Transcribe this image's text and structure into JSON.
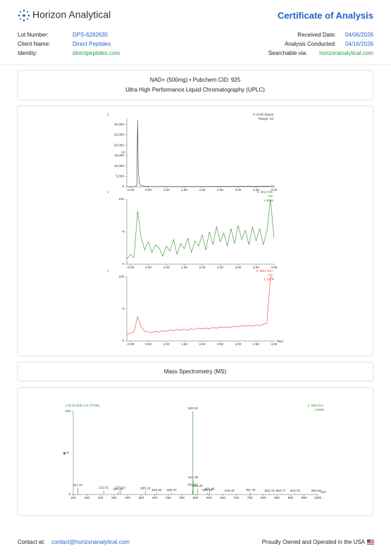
{
  "header": {
    "brand": "Horizon Analytical",
    "title": "Certificate of Analysis"
  },
  "details": {
    "left": [
      [
        "Lot Number:",
        "DPS-6282635"
      ],
      [
        "Client Name:",
        "Direct Peptides"
      ],
      [
        "Identity:",
        "directpeptides.com"
      ]
    ],
    "right": [
      [
        "Received Date:",
        "04/06/2026"
      ],
      [
        "Analysis Conducted:",
        "04/16/2026"
      ],
      [
        "Searchable via:",
        "horizonanalytical.com"
      ]
    ]
  },
  "uplc": {
    "line1": "NAD+ (500mg) • Pubchem CID: 925",
    "line2": "Ultra High Performance Liquid Chromatography (UPLC)"
  },
  "ms_section": {
    "title": "Mass Spectrometry (MS)"
  },
  "footer": {
    "contact_label": "Contact at:",
    "email": "contact@horizonanalytical.com",
    "tagline": "Proudly Owned and Operated in the USA"
  },
  "chart_data": [
    {
      "type": "line",
      "corner_label": "1",
      "trace_title": "2: DAD Signal",
      "trace_sub": "Range: 33",
      "ylabel": "AU",
      "color": "#333333",
      "x": [
        -0.1,
        0,
        0.1,
        0.15,
        0.18,
        0.2,
        0.22,
        0.25,
        0.3,
        0.4,
        0.5,
        1,
        1.5,
        2,
        2.5,
        3,
        3.5,
        3.8,
        3.9,
        4.0
      ],
      "values": [
        0,
        0,
        0,
        100,
        1000,
        32000,
        8000,
        1500,
        500,
        200,
        100,
        50,
        50,
        50,
        100,
        150,
        200,
        250,
        300,
        350
      ],
      "xlim": [
        -0.1,
        4.0
      ],
      "ylim": [
        0,
        33000
      ],
      "xticks": [
        {
          "value": 0,
          "label": "-0.00"
        },
        {
          "value": 0.5,
          "label": "0.50"
        },
        {
          "value": 1,
          "label": "1.00"
        },
        {
          "value": 1.5,
          "label": "1.50"
        },
        {
          "value": 2,
          "label": "2.00"
        },
        {
          "value": 2.5,
          "label": "2.50"
        },
        {
          "value": 3,
          "label": "3.00"
        },
        {
          "value": 3.5,
          "label": "3.50"
        },
        {
          "value": 4,
          "label": "4.00"
        }
      ],
      "yticks": [
        0,
        {
          "value": 5000,
          "label": "5,000"
        },
        {
          "value": 10000,
          "label": "10,000"
        },
        {
          "value": 15000,
          "label": "15,000"
        },
        {
          "value": 20000,
          "label": "20,000"
        },
        {
          "value": 25000,
          "label": "25,000"
        },
        {
          "value": 30000,
          "label": "30,000"
        }
      ]
    },
    {
      "type": "line",
      "corner_label": "1",
      "trace_title": "2: MS2 ES-",
      "trace_sub": "TIC",
      "scale": "1.36e5",
      "ylabel": "%",
      "color": "#2e8b2e",
      "x": [
        -0.1,
        0,
        0.1,
        0.2,
        0.3,
        0.4,
        0.5,
        0.6,
        0.7,
        0.8,
        0.9,
        1.0,
        1.1,
        1.2,
        1.3,
        1.4,
        1.5,
        1.6,
        1.7,
        1.8,
        1.9,
        2.0,
        2.1,
        2.2,
        2.3,
        2.4,
        2.5,
        2.6,
        2.7,
        2.8,
        2.9,
        3.0,
        3.1,
        3.2,
        3.3,
        3.4,
        3.5,
        3.6,
        3.7,
        3.8,
        3.9,
        4.0
      ],
      "values": [
        8,
        15,
        10,
        82,
        40,
        22,
        35,
        18,
        30,
        25,
        12,
        28,
        20,
        38,
        15,
        32,
        24,
        40,
        18,
        36,
        28,
        45,
        22,
        50,
        30,
        58,
        35,
        48,
        28,
        55,
        32,
        60,
        38,
        52,
        30,
        58,
        36,
        55,
        30,
        50,
        100,
        40
      ],
      "xlim": [
        -0.1,
        4.0
      ],
      "ylim": [
        0,
        100
      ],
      "xticks": [
        {
          "value": 0,
          "label": "-0.00"
        },
        {
          "value": 0.5,
          "label": "0.50"
        },
        {
          "value": 1,
          "label": "1.00"
        },
        {
          "value": 1.5,
          "label": "1.50"
        },
        {
          "value": 2,
          "label": "2.00"
        },
        {
          "value": 2.5,
          "label": "2.50"
        },
        {
          "value": 3,
          "label": "3.00"
        },
        {
          "value": 3.5,
          "label": "3.50"
        },
        {
          "value": 4,
          "label": "4.00"
        }
      ],
      "yticks": [
        0,
        100
      ]
    },
    {
      "type": "line",
      "corner_label": "1",
      "trace_title": "3: MS2 ES+",
      "trace_sub": "TIC",
      "scale": "1.11e7",
      "ylabel": "%",
      "xlabel": "Time",
      "color": "#e83a3a",
      "x": [
        -0.1,
        0,
        0.1,
        0.2,
        0.3,
        0.4,
        0.5,
        0.6,
        0.7,
        0.8,
        0.9,
        1.0,
        1.1,
        1.2,
        1.3,
        1.4,
        1.5,
        1.6,
        1.7,
        1.8,
        1.9,
        2.0,
        2.1,
        2.2,
        2.3,
        2.4,
        2.5,
        2.6,
        2.7,
        2.8,
        2.9,
        3.0,
        3.1,
        3.2,
        3.3,
        3.4,
        3.5,
        3.6,
        3.7,
        3.8,
        3.9,
        4.0
      ],
      "values": [
        10,
        12,
        14,
        38,
        22,
        15,
        14,
        13,
        15,
        14,
        16,
        15,
        17,
        16,
        18,
        17,
        18,
        17,
        19,
        18,
        20,
        19,
        20,
        19,
        21,
        20,
        22,
        21,
        22,
        21,
        23,
        22,
        24,
        23,
        24,
        23,
        25,
        24,
        26,
        28,
        100,
        95
      ],
      "xlim": [
        -0.1,
        4.0
      ],
      "ylim": [
        0,
        100
      ],
      "xticks": [
        {
          "value": 0,
          "label": "-0.00"
        },
        {
          "value": 0.5,
          "label": "0.50"
        },
        {
          "value": 1,
          "label": "1.00"
        },
        {
          "value": 1.5,
          "label": "1.50"
        },
        {
          "value": 2,
          "label": "2.00"
        },
        {
          "value": 2.5,
          "label": "2.50"
        },
        {
          "value": 3,
          "label": "3.00"
        },
        {
          "value": 3.5,
          "label": "3.50"
        },
        {
          "value": 4,
          "label": "4.00"
        }
      ],
      "yticks": [
        0,
        100
      ]
    },
    {
      "type": "bar",
      "corner_label": "1 02 (0.328) Cm (72:96)",
      "trace_title": "2: MS2 ES-",
      "scale": "1.98e5",
      "ylabel": "%",
      "xlabel": "m/z",
      "color": "#2e8b2e",
      "x": [
        117.27,
        212.01,
        264.26,
        273.13,
        365.19,
        406.28,
        462.37,
        539.67,
        540.34,
        541.3,
        558.25,
        593.18,
        602.45,
        675.4,
        751.76,
        822.76,
        863.77,
        916.7,
        994.6
      ],
      "x_labels": [
        "117.27",
        "212.01",
        "264.26",
        "273.13",
        "365.19",
        "406.28",
        "462.37",
        "539.67",
        "540.34",
        "541.30",
        "558.25",
        "593.18",
        "602.45",
        "675.40",
        "751.76",
        "822.76",
        "863.77",
        "916.70",
        "994.60"
      ],
      "values": [
        8,
        5,
        3,
        5,
        4,
        2,
        2,
        5,
        100,
        17,
        7,
        2,
        3,
        1,
        2,
        1,
        1,
        1,
        1
      ],
      "xlim": [
        100,
        1000
      ],
      "ylim": [
        0,
        100
      ],
      "xticks": [
        100,
        150,
        200,
        250,
        300,
        350,
        400,
        450,
        500,
        550,
        600,
        650,
        700,
        750,
        800,
        850,
        900,
        950,
        1000
      ],
      "yticks": [
        0,
        100
      ]
    }
  ]
}
